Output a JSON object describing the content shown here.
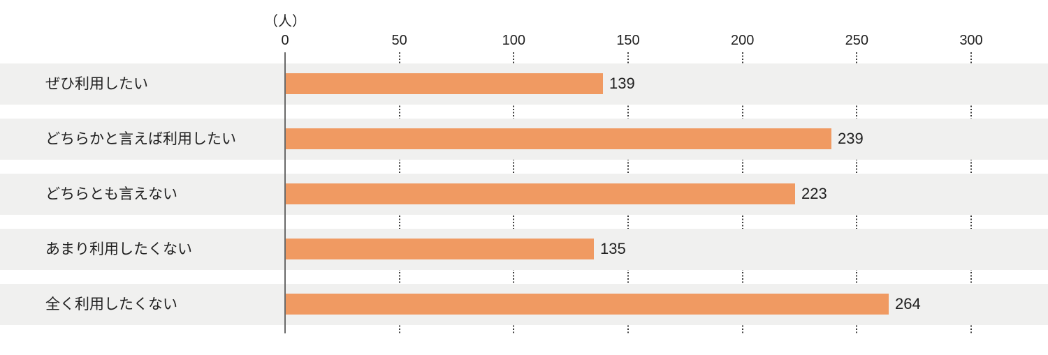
{
  "chart_data": {
    "type": "bar",
    "orientation": "horizontal",
    "unit_label": "（人）",
    "categories": [
      "ぜひ利用したい",
      "どちらかと言えば利用したい",
      "どちらとも言えない",
      "あまり利用したくない",
      "全く利用したくない"
    ],
    "values": [
      139,
      239,
      223,
      135,
      264
    ],
    "ticks": [
      0,
      50,
      100,
      150,
      200,
      250,
      300
    ],
    "xlim": [
      0,
      300
    ],
    "grid": "dotted-vertical-at-ticks",
    "legend": "none",
    "title": "",
    "xlabel": "",
    "ylabel": "",
    "colors": {
      "bar": "#F09A62",
      "row_band": "#F0F0EF",
      "axis": "#6A6A6A",
      "gridline": "#3A3A3A",
      "text": "#1F1F1F",
      "background": "#FFFFFF"
    }
  }
}
